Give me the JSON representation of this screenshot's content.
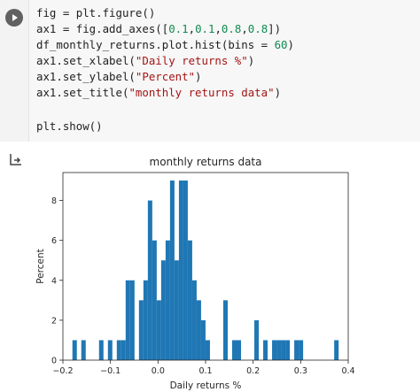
{
  "code": {
    "lines": [
      [
        {
          "t": "fig = plt.figure()"
        }
      ],
      [
        {
          "t": "ax1 = fig.add_axes(["
        },
        {
          "t": "0.1",
          "k": "num"
        },
        {
          "t": ","
        },
        {
          "t": "0.1",
          "k": "num"
        },
        {
          "t": ","
        },
        {
          "t": "0.8",
          "k": "num"
        },
        {
          "t": ","
        },
        {
          "t": "0.8",
          "k": "num"
        },
        {
          "t": "])"
        }
      ],
      [
        {
          "t": "df_monthly_returns.plot.hist(bins = "
        },
        {
          "t": "60",
          "k": "num"
        },
        {
          "t": ")"
        }
      ],
      [
        {
          "t": "ax1.set_xlabel("
        },
        {
          "t": "\"Daily returns %\"",
          "k": "str"
        },
        {
          "t": ")"
        }
      ],
      [
        {
          "t": "ax1.set_ylabel("
        },
        {
          "t": "\"Percent\"",
          "k": "str"
        },
        {
          "t": ")"
        }
      ],
      [
        {
          "t": "ax1.set_title("
        },
        {
          "t": "\"monthly returns data\"",
          "k": "str"
        },
        {
          "t": ")"
        }
      ],
      [
        {
          "t": ""
        }
      ],
      [
        {
          "t": "plt.show()"
        }
      ]
    ]
  },
  "output_icon": "output-arrow-icon",
  "chart_data": {
    "type": "bar",
    "title": "monthly returns data",
    "xlabel": "Daily returns %",
    "ylabel": "Percent",
    "xlim": [
      -0.2,
      0.4
    ],
    "ylim": [
      0,
      9.4
    ],
    "xticks": [
      -0.2,
      -0.1,
      0.0,
      0.1,
      0.2,
      0.3,
      0.4
    ],
    "xtick_labels": [
      "−0.2",
      "−0.1",
      "0.0",
      "0.1",
      "0.2",
      "0.3",
      "0.4"
    ],
    "yticks": [
      0,
      2,
      4,
      6,
      8
    ],
    "ytick_labels": [
      "0",
      "2",
      "4",
      "6",
      "8"
    ],
    "bin_edges_start": -0.18,
    "bin_width": 0.00933,
    "values": [
      1,
      0,
      1,
      0,
      0,
      0,
      1,
      0,
      1,
      0,
      1,
      1,
      4,
      4,
      0,
      3,
      4,
      8,
      6,
      3,
      5,
      6,
      9,
      5,
      9,
      9,
      6,
      4,
      3,
      2,
      1,
      0,
      0,
      0,
      3,
      0,
      1,
      1,
      0,
      0,
      0,
      2,
      0,
      1,
      0,
      1,
      1,
      1,
      1,
      0,
      1,
      1,
      0,
      0,
      0,
      0,
      0,
      0,
      0,
      1
    ],
    "bar_color": "#1f77b4",
    "grid": false
  }
}
